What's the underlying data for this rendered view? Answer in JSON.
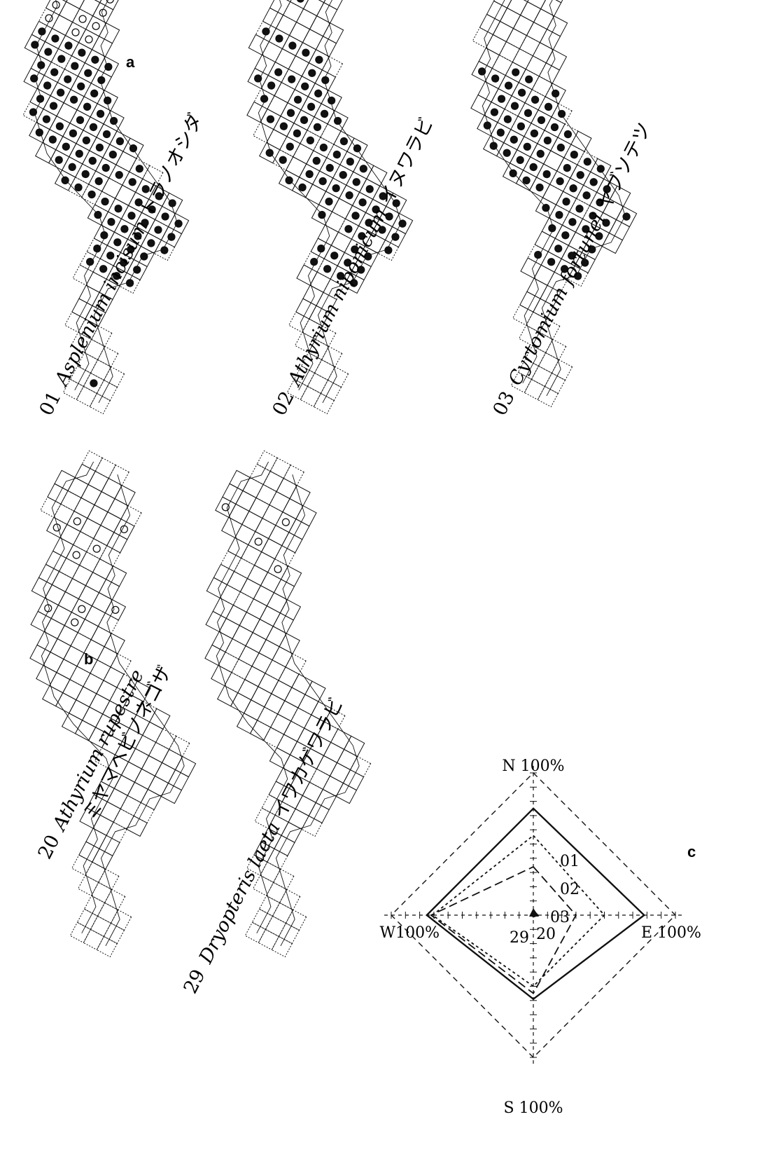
{
  "panel_a": {
    "letter": "a",
    "maps": [
      {
        "code": "01",
        "genus_species": "Asplenium incisum",
        "japanese": "トラノオシダ"
      },
      {
        "code": "02",
        "genus_species": "Athyrium niponicum",
        "japanese": "イヌワラビ"
      },
      {
        "code": "03",
        "genus_species": "Cyrtomium fortunei",
        "japanese": "ヤブソテツ"
      }
    ]
  },
  "panel_b": {
    "letter": "b",
    "maps": [
      {
        "code": "20",
        "genus_species": "Athyrium rupestre",
        "japanese": "ミヤマヘビノネゴザ"
      },
      {
        "code": "29",
        "genus_species": "Dryopteris laeta",
        "japanese": "イワカゲワラビ"
      }
    ]
  },
  "panel_c": {
    "letter": "c",
    "axes": {
      "north": "N 100%",
      "east": "E 100%",
      "south": "S 100%",
      "west": "W100%"
    },
    "series_labels": [
      "01",
      "02",
      "03",
      "29",
      "20"
    ]
  },
  "colors": {
    "ink": "#111111",
    "paper": "#ffffff"
  },
  "chart_data": {
    "type": "radar",
    "categories": [
      "N",
      "E",
      "S",
      "W"
    ],
    "max": 100,
    "series": [
      {
        "name": "01",
        "values": [
          75,
          78,
          59,
          75
        ]
      },
      {
        "name": "02",
        "values": [
          56,
          50,
          50,
          71
        ]
      },
      {
        "name": "03",
        "values": [
          34,
          30,
          55,
          72
        ]
      },
      {
        "name": "29",
        "values": [
          3,
          3,
          1,
          1
        ]
      },
      {
        "name": "20",
        "values": [
          1,
          1,
          1,
          1
        ]
      }
    ]
  }
}
